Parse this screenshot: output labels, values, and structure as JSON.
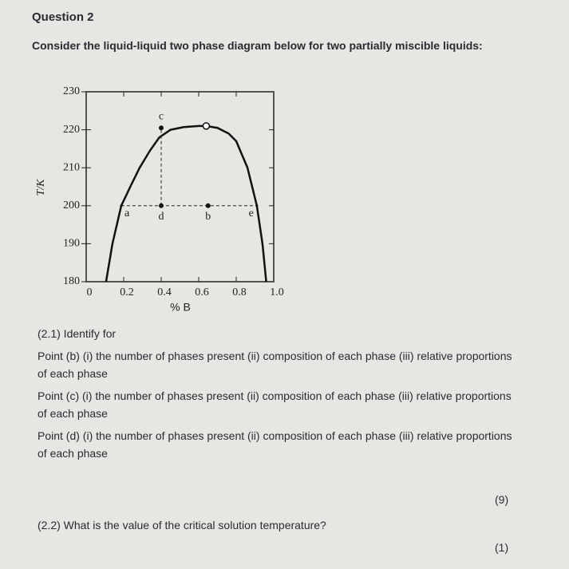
{
  "header": {
    "title": "Question 2",
    "intro": "Consider the liquid-liquid two phase diagram below for two partially miscible liquids:"
  },
  "figure": {
    "type": "line",
    "y_label": "T/K",
    "x_label": "% B",
    "xlim": [
      0,
      1
    ],
    "ylim": [
      180,
      230
    ],
    "xticks": [
      0,
      0.2,
      0.4,
      0.6,
      0.8,
      {
        "value": 1,
        "label": "1.0"
      }
    ],
    "yticks": [
      180,
      190,
      200,
      210,
      220,
      230
    ],
    "curve": {
      "x": [
        0.106,
        0.14,
        0.187,
        0.24,
        0.285,
        0.34,
        0.39,
        0.45,
        0.52,
        0.6,
        0.64,
        0.7,
        0.76,
        0.8,
        0.86,
        0.91,
        0.94,
        0.96
      ],
      "y": [
        180,
        190,
        200,
        205.5,
        210,
        214.5,
        218,
        220,
        220.7,
        221,
        221,
        220.5,
        219,
        217,
        210,
        200,
        190,
        180
      ]
    },
    "critical_point": {
      "x": 0.64,
      "y": 221
    },
    "points": [
      {
        "label": "a",
        "x": 0.187,
        "y": 200
      },
      {
        "label": "d",
        "x": 0.4,
        "y": 200
      },
      {
        "label": "b",
        "x": 0.65,
        "y": 200
      },
      {
        "label": "e",
        "x": 0.91,
        "y": 200
      },
      {
        "label": "c",
        "x": 0.4,
        "y": 220.5
      }
    ]
  },
  "questions": [
    {
      "text": "(2.1) Identify for"
    },
    {
      "text": "Point (b) (i) the number of phases present (ii) composition of each phase (iii) relative proportions of each phase"
    },
    {
      "text": "Point (c) (i) the number of phases present (ii) composition of each phase (iii) relative proportions of each phase"
    },
    {
      "text": "Point (d) (i) the number of phases present (ii) composition of each phase (iii) relative proportions of each phase"
    },
    {
      "text": "(9)"
    },
    {
      "text": "(2.2) What is the value of the critical solution temperature?"
    },
    {
      "text": "(1)"
    }
  ]
}
